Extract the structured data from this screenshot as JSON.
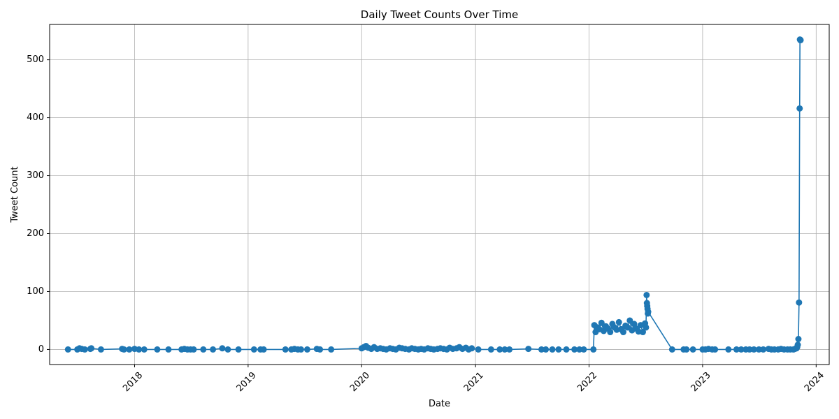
{
  "chart_data": {
    "type": "line",
    "title": "Daily Tweet Counts Over Time",
    "xlabel": "Date",
    "ylabel": "Tweet Count",
    "x_ticks": [
      "2018",
      "2019",
      "2020",
      "2021",
      "2022",
      "2023",
      "2024"
    ],
    "y_ticks": [
      0,
      100,
      200,
      300,
      400,
      500
    ],
    "xlim": [
      "2017-04-03",
      "2024-02-12"
    ],
    "ylim": [
      -26,
      561
    ],
    "grid": true,
    "series": [
      {
        "color": "#1f77b4",
        "marker": "circle",
        "x": [
          "2017-06-01",
          "2017-07-01",
          "2017-07-08",
          "2017-07-15",
          "2017-07-25",
          "2017-08-12",
          "2017-08-15",
          "2017-09-15",
          "2017-11-22",
          "2017-11-28",
          "2017-12-15",
          "2018-01-01",
          "2018-01-15",
          "2018-02-01",
          "2018-03-15",
          "2018-04-20",
          "2018-06-01",
          "2018-06-10",
          "2018-06-20",
          "2018-06-30",
          "2018-07-10",
          "2018-08-10",
          "2018-09-10",
          "2018-10-10",
          "2018-10-28",
          "2018-12-01",
          "2019-01-20",
          "2019-02-10",
          "2019-02-20",
          "2019-05-01",
          "2019-05-20",
          "2019-05-30",
          "2019-06-10",
          "2019-06-20",
          "2019-07-10",
          "2019-08-10",
          "2019-08-20",
          "2019-09-25",
          "2020-01-01",
          "2020-01-08",
          "2020-01-15",
          "2020-01-22",
          "2020-02-01",
          "2020-02-10",
          "2020-02-20",
          "2020-03-01",
          "2020-03-10",
          "2020-03-20",
          "2020-04-01",
          "2020-04-10",
          "2020-04-20",
          "2020-05-01",
          "2020-05-10",
          "2020-05-20",
          "2020-06-01",
          "2020-06-10",
          "2020-06-20",
          "2020-07-01",
          "2020-07-10",
          "2020-07-20",
          "2020-08-01",
          "2020-08-10",
          "2020-08-20",
          "2020-09-01",
          "2020-09-10",
          "2020-09-20",
          "2020-10-01",
          "2020-10-10",
          "2020-10-20",
          "2020-11-01",
          "2020-11-10",
          "2020-11-20",
          "2020-12-01",
          "2020-12-10",
          "2020-12-20",
          "2021-01-10",
          "2021-02-20",
          "2021-03-20",
          "2021-04-05",
          "2021-04-20",
          "2021-06-20",
          "2021-08-01",
          "2021-08-15",
          "2021-09-05",
          "2021-09-25",
          "2021-10-20",
          "2021-11-15",
          "2021-12-01",
          "2021-12-15",
          "2022-01-15",
          "2022-01-18",
          "2022-01-22",
          "2022-01-28",
          "2022-02-03",
          "2022-02-10",
          "2022-02-17",
          "2022-02-24",
          "2022-03-03",
          "2022-03-10",
          "2022-03-17",
          "2022-03-24",
          "2022-03-31",
          "2022-04-07",
          "2022-04-14",
          "2022-04-21",
          "2022-04-28",
          "2022-05-05",
          "2022-05-12",
          "2022-05-19",
          "2022-05-26",
          "2022-06-02",
          "2022-06-09",
          "2022-06-16",
          "2022-06-23",
          "2022-06-30",
          "2022-07-03",
          "2022-07-05",
          "2022-07-06",
          "2022-07-07",
          "2022-07-08",
          "2022-07-09",
          "2022-07-10",
          "2022-09-25",
          "2022-11-01",
          "2022-11-10",
          "2022-12-01",
          "2023-01-01",
          "2023-01-10",
          "2023-01-20",
          "2023-02-01",
          "2023-02-10",
          "2023-03-25",
          "2023-04-20",
          "2023-05-05",
          "2023-05-20",
          "2023-06-01",
          "2023-06-15",
          "2023-07-01",
          "2023-07-15",
          "2023-08-01",
          "2023-08-10",
          "2023-08-20",
          "2023-09-01",
          "2023-09-10",
          "2023-09-20",
          "2023-10-01",
          "2023-10-10",
          "2023-10-20",
          "2023-10-25",
          "2023-10-30",
          "2023-11-01",
          "2023-11-03",
          "2023-11-05",
          "2023-11-07",
          "2023-11-09",
          "2023-11-10",
          "2023-11-11",
          "2023-11-12"
        ],
        "y": [
          0,
          0,
          2,
          1,
          0,
          1,
          2,
          0,
          1,
          0,
          0,
          1,
          0,
          0,
          0,
          0,
          0,
          1,
          0,
          0,
          0,
          0,
          0,
          2,
          0,
          0,
          0,
          0,
          0,
          0,
          0,
          1,
          0,
          0,
          0,
          1,
          0,
          0,
          2,
          4,
          6,
          3,
          1,
          4,
          1,
          2,
          1,
          0,
          2,
          1,
          0,
          3,
          2,
          1,
          0,
          2,
          1,
          0,
          1,
          0,
          2,
          1,
          0,
          1,
          2,
          1,
          0,
          3,
          1,
          2,
          4,
          1,
          3,
          0,
          2,
          0,
          0,
          0,
          0,
          0,
          1,
          0,
          0,
          0,
          0,
          0,
          0,
          0,
          0,
          0,
          42,
          30,
          38,
          35,
          46,
          32,
          40,
          36,
          30,
          44,
          38,
          34,
          47,
          35,
          30,
          41,
          38,
          50,
          33,
          44,
          36,
          31,
          42,
          30,
          45,
          38,
          94,
          80,
          75,
          70,
          62,
          65,
          0,
          0,
          0,
          0,
          0,
          0,
          1,
          0,
          0,
          0,
          0,
          0,
          0,
          0,
          0,
          0,
          0,
          1,
          0,
          0,
          0,
          1,
          0,
          0,
          0,
          0,
          1,
          2,
          4,
          8,
          18,
          81,
          416,
          535,
          534,
          534
        ]
      }
    ]
  }
}
